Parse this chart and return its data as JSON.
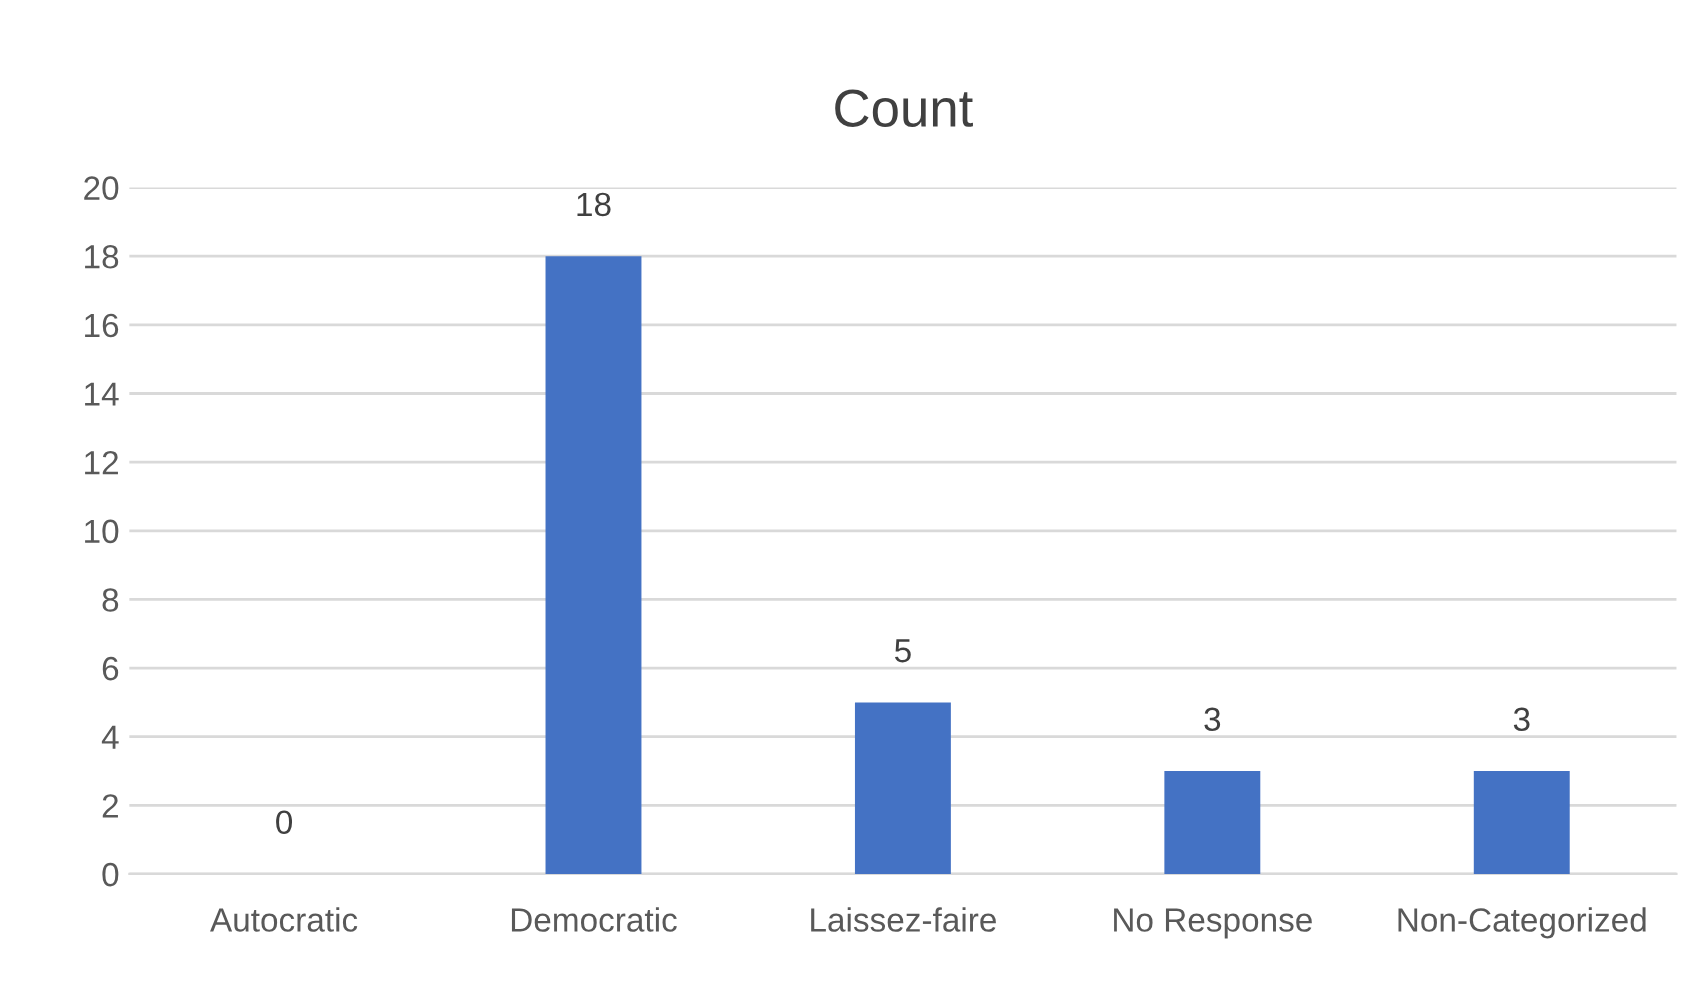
{
  "chart_data": {
    "type": "bar",
    "title": "Count",
    "categories": [
      "Autocratic",
      "Democratic",
      "Laissez-faire",
      "No Response",
      "Non-Categorized"
    ],
    "values": [
      0,
      18,
      5,
      3,
      3
    ],
    "color": "#4472c4",
    "ylim": [
      0,
      20
    ],
    "yticks": [
      0,
      2,
      4,
      6,
      8,
      10,
      12,
      14,
      16,
      18,
      20
    ],
    "grid": "y",
    "data_labels": true
  }
}
